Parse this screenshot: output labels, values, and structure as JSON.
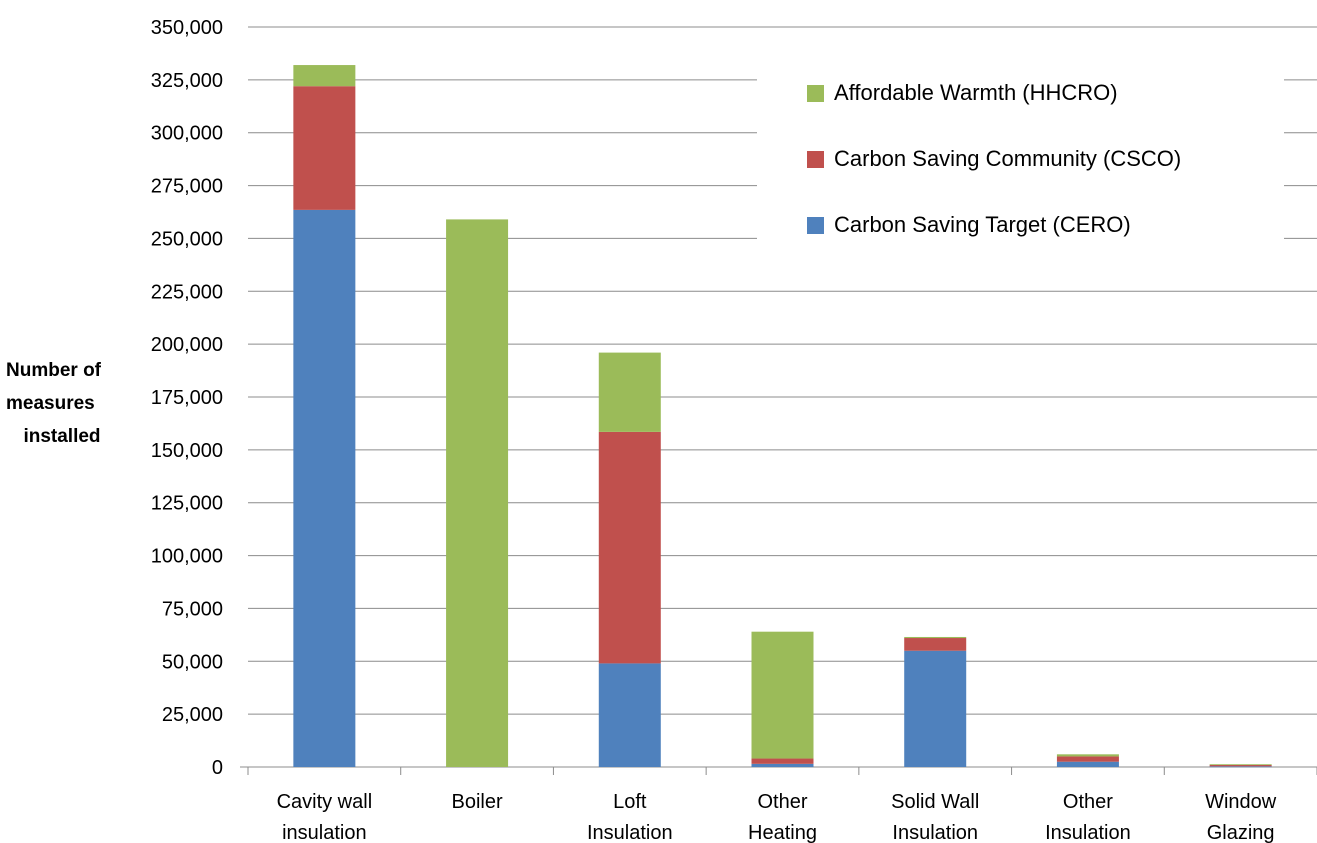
{
  "chart_data": {
    "type": "bar",
    "stacked": true,
    "categories": [
      [
        "Cavity wall",
        "insulation"
      ],
      [
        "Boiler"
      ],
      [
        "Loft",
        "Insulation"
      ],
      [
        "Other",
        "Heating"
      ],
      [
        "Solid Wall",
        "Insulation"
      ],
      [
        "Other",
        "Insulation"
      ],
      [
        "Window",
        "Glazing"
      ]
    ],
    "series": [
      {
        "name": "Carbon Saving Target (CERO)",
        "color": "#4F81BD",
        "values": [
          263500,
          0,
          49000,
          1500,
          55000,
          2500,
          300
        ]
      },
      {
        "name": "Carbon Saving Community (CSCO)",
        "color": "#C0504D",
        "values": [
          58500,
          0,
          109500,
          2500,
          6000,
          2500,
          700
        ]
      },
      {
        "name": "Affordable Warmth (HHCRO)",
        "color": "#9BBB59",
        "values": [
          10000,
          259000,
          37500,
          60000,
          500,
          1000,
          300
        ]
      }
    ],
    "ylabel_lines": [
      "Number of",
      "measures",
      "installed"
    ],
    "ylim": [
      0,
      350000
    ],
    "ytick_step": 25000,
    "grid": true,
    "legend_placement": "top-right",
    "legend_order": [
      2,
      1,
      0
    ]
  }
}
